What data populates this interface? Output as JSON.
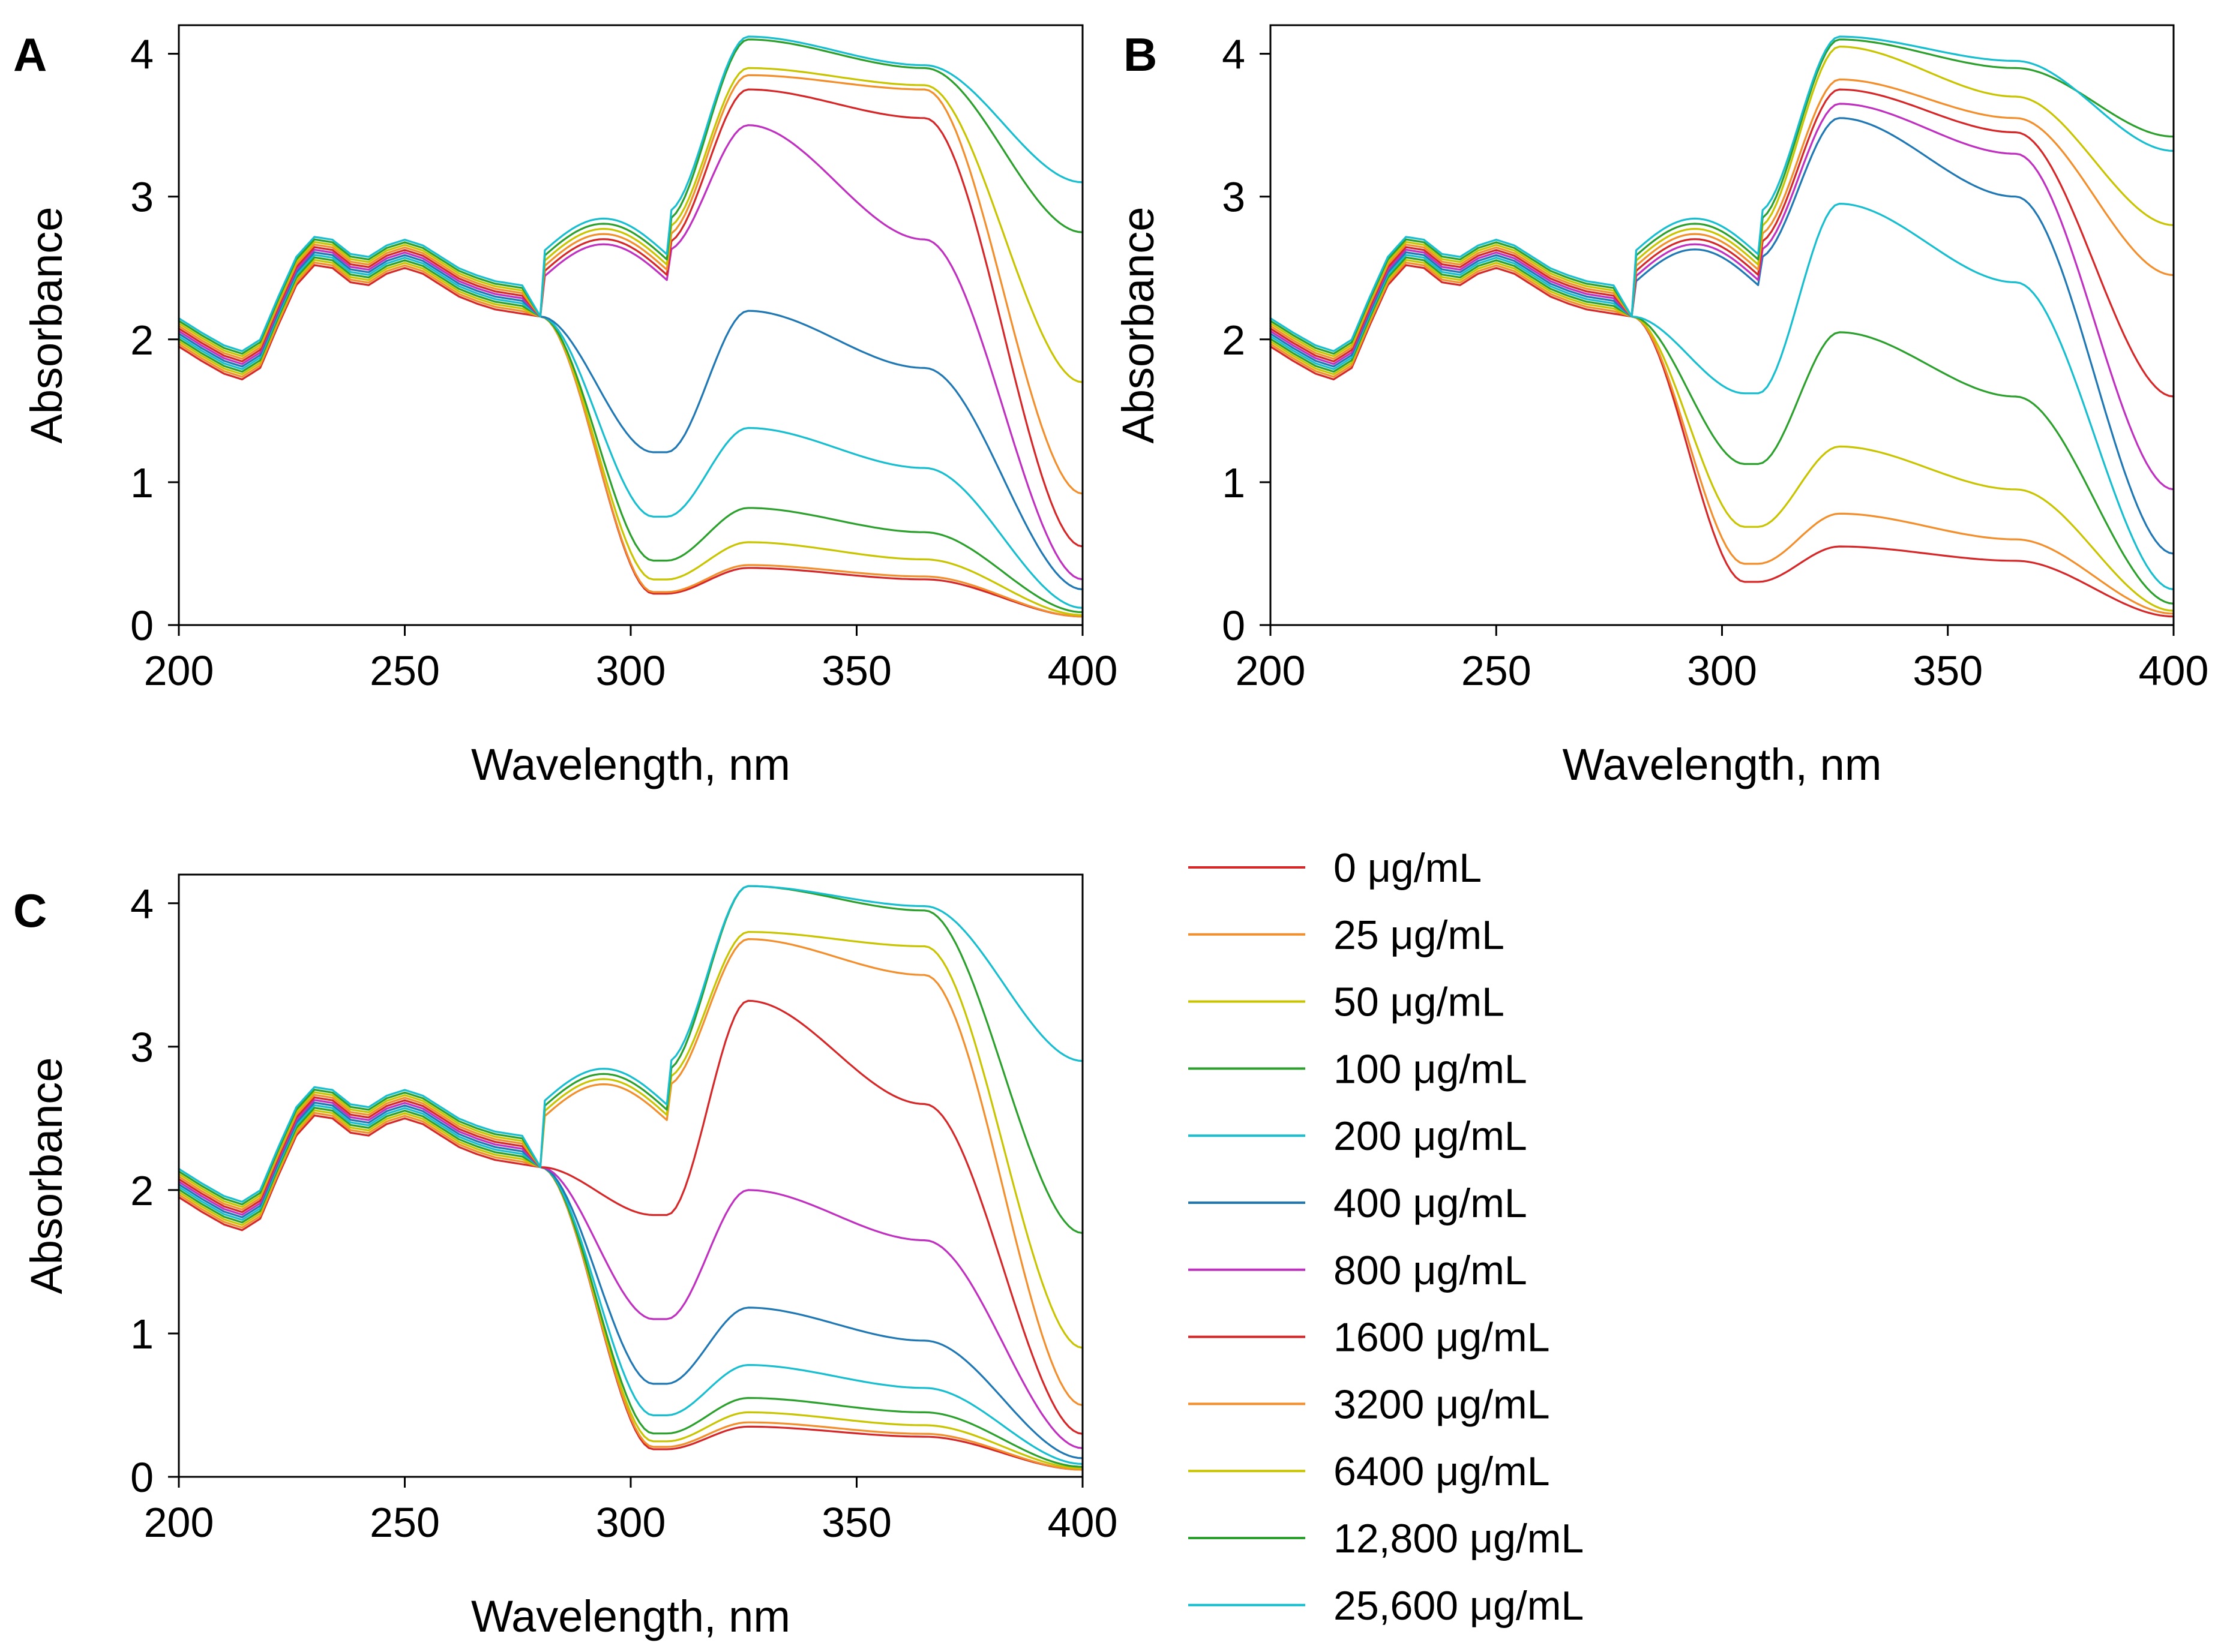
{
  "figure": {
    "legend": {
      "entries": [
        "0 μg/mL",
        "25 μg/mL",
        "50 μg/mL",
        "100 μg/mL",
        "200 μg/mL",
        "400 μg/mL",
        "800 μg/mL",
        "1600 μg/mL",
        "3200 μg/mL",
        "6400 μg/mL",
        "12,800 μg/mL",
        "25,600 μg/mL"
      ],
      "colors": [
        "#d62728",
        "#f28e2b",
        "#c8c400",
        "#2ca02c",
        "#17becf",
        "#1f77b4",
        "#c030c0",
        "#d62728",
        "#f28e2b",
        "#c8c400",
        "#2ca02c",
        "#17becf"
      ]
    }
  },
  "chart_data": [
    {
      "panel": "A",
      "type": "line",
      "xlabel": "Wavelength, nm",
      "ylabel": "Absorbance",
      "xlim": [
        200,
        400
      ],
      "ylim": [
        0,
        4.2
      ],
      "xticks": [
        "200",
        "250",
        "300",
        "350",
        "400"
      ],
      "yticks": [
        "0",
        "1",
        "2",
        "3",
        "4"
      ],
      "series": [
        {
          "name": "0 μg/mL",
          "peak": 0.4,
          "shoulder": 0.32,
          "tail": 0.06
        },
        {
          "name": "25 μg/mL",
          "peak": 0.42,
          "shoulder": 0.34,
          "tail": 0.06
        },
        {
          "name": "50 μg/mL",
          "peak": 0.58,
          "shoulder": 0.46,
          "tail": 0.07
        },
        {
          "name": "100 μg/mL",
          "peak": 0.82,
          "shoulder": 0.65,
          "tail": 0.09
        },
        {
          "name": "200 μg/mL",
          "peak": 1.38,
          "shoulder": 1.1,
          "tail": 0.12
        },
        {
          "name": "400 μg/mL",
          "peak": 2.2,
          "shoulder": 1.8,
          "tail": 0.25
        },
        {
          "name": "800 μg/mL",
          "peak": 3.5,
          "shoulder": 2.7,
          "tail": 0.32
        },
        {
          "name": "1600 μg/mL",
          "peak": 3.75,
          "shoulder": 3.55,
          "tail": 0.55
        },
        {
          "name": "3200 μg/mL",
          "peak": 3.85,
          "shoulder": 3.75,
          "tail": 0.92
        },
        {
          "name": "6400 μg/mL",
          "peak": 3.9,
          "shoulder": 3.78,
          "tail": 1.7
        },
        {
          "name": "12,800 μg/mL",
          "peak": 4.1,
          "shoulder": 3.9,
          "tail": 2.75
        },
        {
          "name": "25,600 μg/mL",
          "peak": 4.12,
          "shoulder": 3.92,
          "tail": 3.1
        }
      ]
    },
    {
      "panel": "B",
      "type": "line",
      "xlabel": "Wavelength, nm",
      "ylabel": "Absorbance",
      "xlim": [
        200,
        400
      ],
      "ylim": [
        0,
        4.2
      ],
      "xticks": [
        "200",
        "250",
        "300",
        "350",
        "400"
      ],
      "yticks": [
        "0",
        "1",
        "2",
        "3",
        "4"
      ],
      "series": [
        {
          "name": "0 μg/mL",
          "peak": 0.55,
          "shoulder": 0.45,
          "tail": 0.06
        },
        {
          "name": "25 μg/mL",
          "peak": 0.78,
          "shoulder": 0.6,
          "tail": 0.08
        },
        {
          "name": "50 μg/mL",
          "peak": 1.25,
          "shoulder": 0.95,
          "tail": 0.1
        },
        {
          "name": "100 μg/mL",
          "peak": 2.05,
          "shoulder": 1.6,
          "tail": 0.15
        },
        {
          "name": "200 μg/mL",
          "peak": 2.95,
          "shoulder": 2.4,
          "tail": 0.25
        },
        {
          "name": "400 μg/mL",
          "peak": 3.55,
          "shoulder": 3.0,
          "tail": 0.5
        },
        {
          "name": "800 μg/mL",
          "peak": 3.65,
          "shoulder": 3.3,
          "tail": 0.95
        },
        {
          "name": "1600 μg/mL",
          "peak": 3.75,
          "shoulder": 3.45,
          "tail": 1.6
        },
        {
          "name": "3200 μg/mL",
          "peak": 3.82,
          "shoulder": 3.55,
          "tail": 2.45
        },
        {
          "name": "6400 μg/mL",
          "peak": 4.05,
          "shoulder": 3.7,
          "tail": 2.8
        },
        {
          "name": "12,800 μg/mL",
          "peak": 4.1,
          "shoulder": 3.9,
          "tail": 3.42
        },
        {
          "name": "25,600 μg/mL",
          "peak": 4.12,
          "shoulder": 3.95,
          "tail": 3.32
        }
      ]
    },
    {
      "panel": "C",
      "type": "line",
      "xlabel": "Wavelength, nm",
      "ylabel": "Absorbance",
      "xlim": [
        200,
        400
      ],
      "ylim": [
        0,
        4.2
      ],
      "xticks": [
        "200",
        "250",
        "300",
        "350",
        "400"
      ],
      "yticks": [
        "0",
        "1",
        "2",
        "3",
        "4"
      ],
      "series": [
        {
          "name": "0 μg/mL",
          "peak": 0.35,
          "shoulder": 0.28,
          "tail": 0.05
        },
        {
          "name": "25 μg/mL",
          "peak": 0.38,
          "shoulder": 0.3,
          "tail": 0.05
        },
        {
          "name": "50 μg/mL",
          "peak": 0.45,
          "shoulder": 0.36,
          "tail": 0.06
        },
        {
          "name": "100 μg/mL",
          "peak": 0.55,
          "shoulder": 0.45,
          "tail": 0.07
        },
        {
          "name": "200 μg/mL",
          "peak": 0.78,
          "shoulder": 0.62,
          "tail": 0.09
        },
        {
          "name": "400 μg/mL",
          "peak": 1.18,
          "shoulder": 0.95,
          "tail": 0.13
        },
        {
          "name": "800 μg/mL",
          "peak": 2.0,
          "shoulder": 1.65,
          "tail": 0.2
        },
        {
          "name": "1600 μg/mL",
          "peak": 3.32,
          "shoulder": 2.6,
          "tail": 0.3
        },
        {
          "name": "3200 μg/mL",
          "peak": 3.75,
          "shoulder": 3.5,
          "tail": 0.5
        },
        {
          "name": "6400 μg/mL",
          "peak": 3.8,
          "shoulder": 3.7,
          "tail": 0.9
        },
        {
          "name": "12,800 μg/mL",
          "peak": 4.12,
          "shoulder": 3.95,
          "tail": 1.7
        },
        {
          "name": "25,600 μg/mL",
          "peak": 4.12,
          "shoulder": 3.98,
          "tail": 2.9
        }
      ]
    }
  ]
}
